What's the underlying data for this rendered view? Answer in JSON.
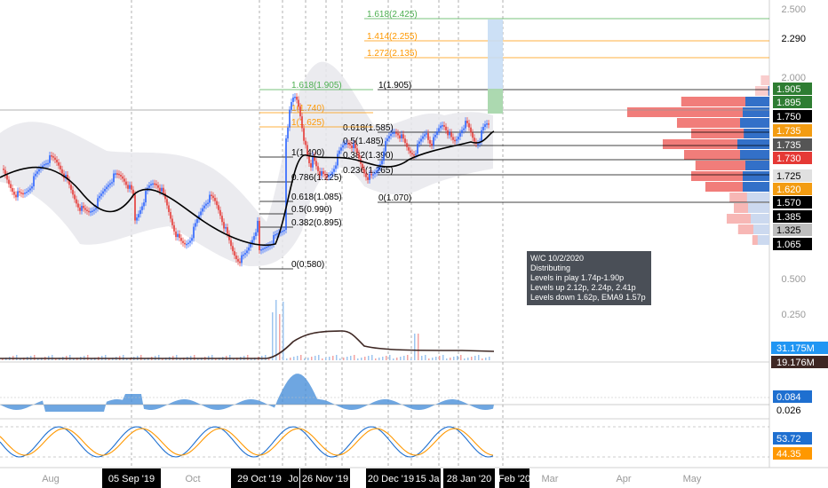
{
  "chart_data": {
    "type": "candlestick",
    "x_axis": {
      "ticks": [
        {
          "label": "Aug",
          "style": "plain"
        },
        {
          "label": "05 Sep '19",
          "style": "boxed"
        },
        {
          "label": "Oct",
          "style": "plain"
        },
        {
          "label": "29 Oct '19",
          "style": "boxed"
        },
        {
          "label": "Jo",
          "style": "boxed"
        },
        {
          "label": "26 Nov '19",
          "style": "boxed"
        },
        {
          "label": "20 Dec '19",
          "style": "boxed"
        },
        {
          "label": "15 Ja",
          "style": "boxed"
        },
        {
          "label": "28 Jan '20",
          "style": "boxed"
        },
        {
          "label": "Feb '20",
          "style": "boxed"
        },
        {
          "label": "Mar",
          "style": "plain"
        },
        {
          "label": "Apr",
          "style": "plain"
        },
        {
          "label": "May",
          "style": "plain"
        }
      ]
    },
    "price_axis": {
      "ticks": [
        "2.500",
        "2.290",
        "2.000",
        "0.500",
        "0.250"
      ],
      "badges": [
        {
          "label": "1.905",
          "bg": "#2e7d32",
          "fg": "#ffffff"
        },
        {
          "label": "1.895",
          "bg": "#2e7d32",
          "fg": "#ffffff"
        },
        {
          "label": "1.750",
          "bg": "#000000",
          "fg": "#ffffff"
        },
        {
          "label": "1.735",
          "bg": "#f39c12",
          "fg": "#ffffff"
        },
        {
          "label": "1.735",
          "bg": "#555555",
          "fg": "#ffffff"
        },
        {
          "label": "1.730",
          "bg": "#e53935",
          "fg": "#ffffff"
        },
        {
          "label": "1.725",
          "bg": "#e0e0e0",
          "fg": "#000000"
        },
        {
          "label": "1.620",
          "bg": "#f39c12",
          "fg": "#ffffff"
        },
        {
          "label": "1.570",
          "bg": "#000000",
          "fg": "#ffffff"
        },
        {
          "label": "1.385",
          "bg": "#000000",
          "fg": "#ffffff"
        },
        {
          "label": "1.325",
          "bg": "#bdbdbd",
          "fg": "#000000"
        },
        {
          "label": "1.065",
          "bg": "#000000",
          "fg": "#ffffff"
        }
      ],
      "volume_badges": [
        {
          "label": "31.175M",
          "bg": "#2196f3",
          "fg": "#ffffff"
        },
        {
          "label": "19.176M",
          "bg": "#3e2723",
          "fg": "#ffffff"
        }
      ]
    },
    "fib_levels_top": [
      {
        "label": "1.618(2.425)",
        "color": "#4caf50"
      },
      {
        "label": "1.414(2.255)",
        "color": "#ff9800"
      },
      {
        "label": "1.272(2.135)",
        "color": "#ff9800"
      },
      {
        "label": "1(1.905)",
        "color": "#000000"
      },
      {
        "label": "0.618(1.585)",
        "color": "#000000"
      },
      {
        "label": "0.5(1.485)",
        "color": "#000000"
      },
      {
        "label": "0.382(1.390)",
        "color": "#000000"
      },
      {
        "label": "0.236(1.265)",
        "color": "#000000"
      },
      {
        "label": "0(1.070)",
        "color": "#000000"
      }
    ],
    "fib_levels_left": [
      {
        "label": "1.618(1.905)",
        "color": "#4caf50"
      },
      {
        "label": "1(1.740)",
        "color": "#ff9800"
      },
      {
        "label": "1(1.625)",
        "color": "#ff9800"
      },
      {
        "label": "1(1.400)",
        "color": "#000000"
      },
      {
        "label": "0.786(1.225)",
        "color": "#000000"
      },
      {
        "label": "0.618(1.085)",
        "color": "#000000"
      },
      {
        "label": "0.5(0.990)",
        "color": "#000000"
      },
      {
        "label": "0.382(0.895)",
        "color": "#000000"
      },
      {
        "label": "0(0.580)",
        "color": "#000000"
      }
    ],
    "annotation": {
      "title": "W/C 10/2/2020",
      "lines": [
        "Distributing",
        "Levels in play 1.74p-1.90p",
        "Levels up 2.12p, 2.24p, 2.41p",
        "Levels down 1.62p, EMA9 1.57p"
      ]
    },
    "macd": {
      "badges": [
        {
          "label": "0.084",
          "bg": "#1e6fd0",
          "fg": "#ffffff"
        },
        {
          "label": "0.026",
          "bg": "#ffffff",
          "fg": "#000000"
        }
      ]
    },
    "stochastic": {
      "badges": [
        {
          "label": "53.72",
          "bg": "#1e6fd0",
          "fg": "#ffffff"
        },
        {
          "label": "44.35",
          "bg": "#ff9800",
          "fg": "#ffffff"
        }
      ]
    },
    "volume_profile": {
      "rows": [
        {
          "sell": 0.06,
          "buy": 0.0
        },
        {
          "sell": 0.1,
          "buy": 0.02
        },
        {
          "sell": 0.62,
          "buy": 0.45
        },
        {
          "sell": 1.0,
          "buy": 0.5
        },
        {
          "sell": 0.65,
          "buy": 0.55
        },
        {
          "sell": 0.55,
          "buy": 0.48
        },
        {
          "sell": 0.75,
          "buy": 0.6
        },
        {
          "sell": 0.6,
          "buy": 0.55
        },
        {
          "sell": 0.52,
          "buy": 0.45
        },
        {
          "sell": 0.55,
          "buy": 0.5
        },
        {
          "sell": 0.45,
          "buy": 0.5
        },
        {
          "sell": 0.28,
          "buy": 0.42
        },
        {
          "sell": 0.25,
          "buy": 0.4
        },
        {
          "sell": 0.3,
          "buy": 0.35
        },
        {
          "sell": 0.22,
          "buy": 0.3
        },
        {
          "sell": 0.12,
          "buy": 0.22
        }
      ]
    },
    "colors": {
      "up": "#2962ff",
      "down": "#e53935",
      "ema": "#000000",
      "bands": "#e8e8ec",
      "macd_pos": "#4a90d9",
      "macd_neg": "#ef5350",
      "stoch_k": "#1e6fd0",
      "stoch_d": "#ff9800"
    }
  }
}
